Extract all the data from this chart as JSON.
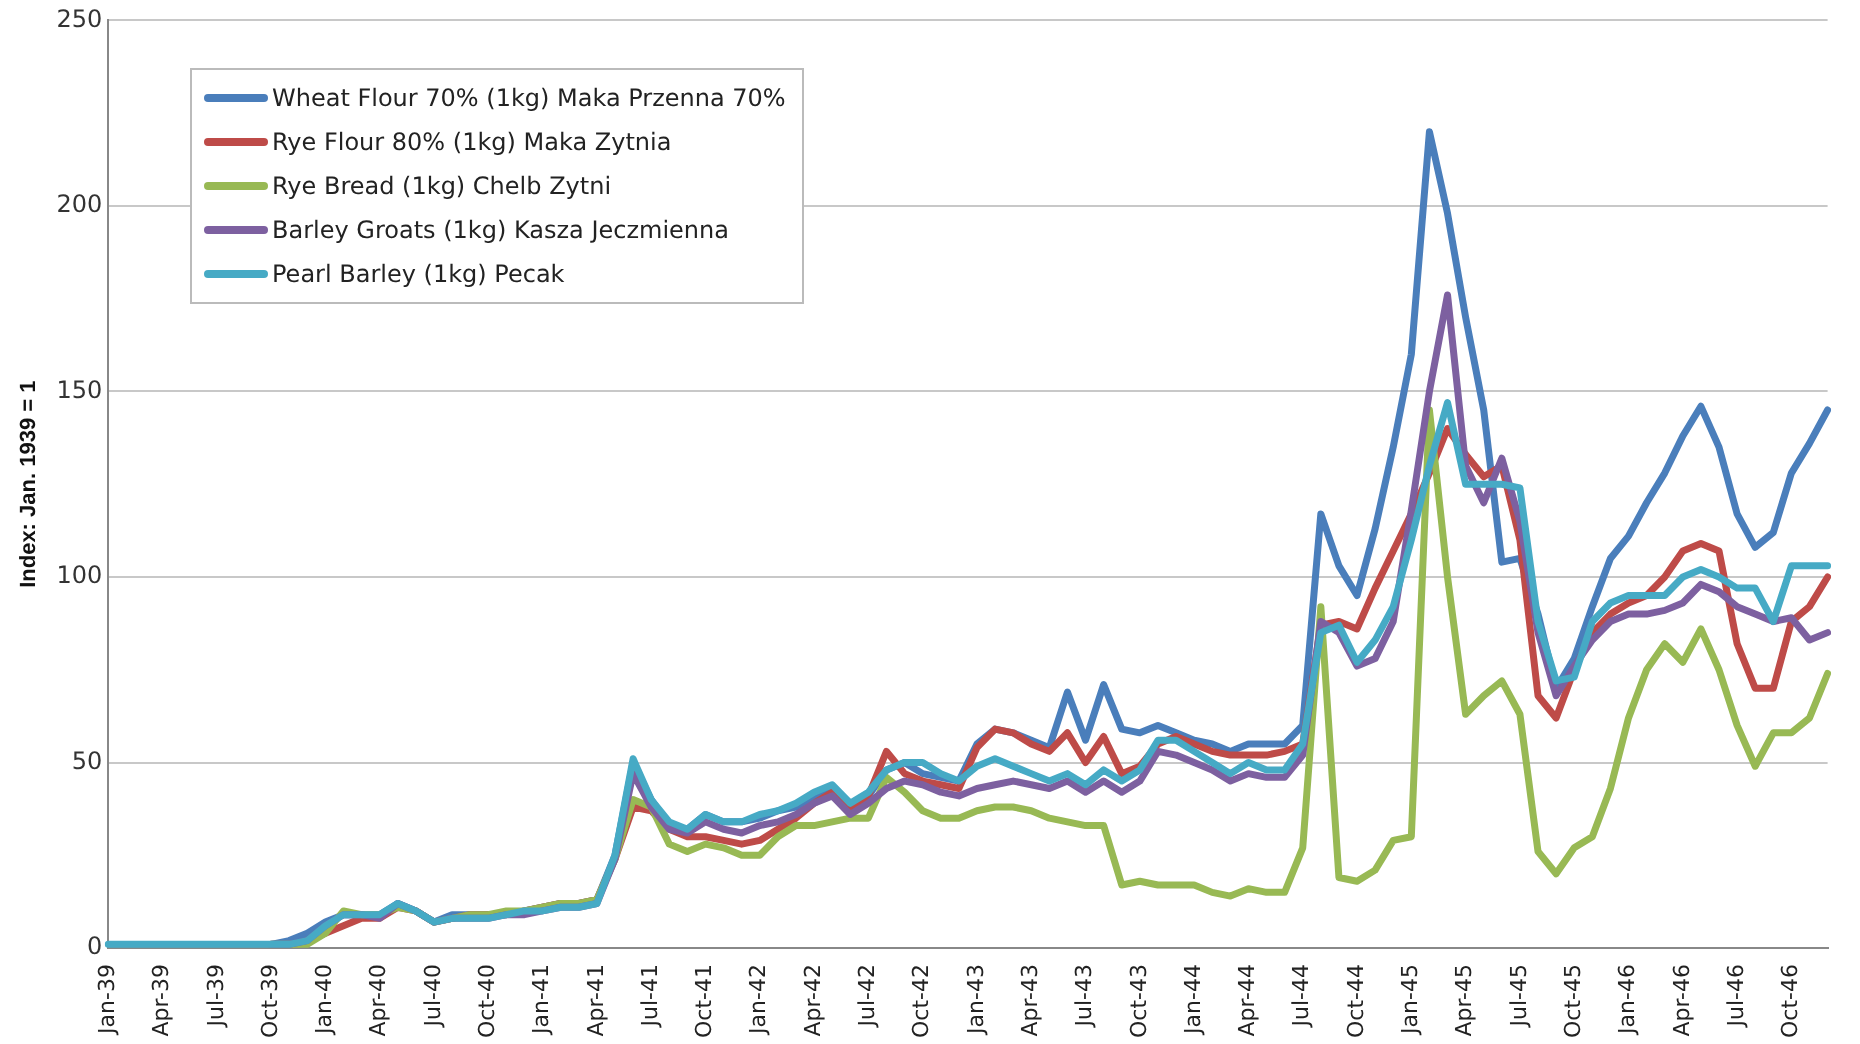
{
  "chart_data": {
    "type": "line",
    "ylabel": "Index: Jan. 1939 = 1",
    "categories": [
      "Jan-39",
      null,
      null,
      "Apr-39",
      null,
      null,
      "Jul-39",
      null,
      null,
      "Oct-39",
      null,
      null,
      "Jan-40",
      null,
      null,
      "Apr-40",
      null,
      null,
      "Jul-40",
      null,
      null,
      "Oct-40",
      null,
      null,
      "Jan-41",
      null,
      null,
      "Apr-41",
      null,
      null,
      "Jul-41",
      null,
      null,
      "Oct-41",
      null,
      null,
      "Jan-42",
      null,
      null,
      "Apr-42",
      null,
      null,
      "Jul-42",
      null,
      null,
      "Oct-42",
      null,
      null,
      "Jan-43",
      null,
      null,
      "Apr-43",
      null,
      null,
      "Jul-43",
      null,
      null,
      "Oct-43",
      null,
      null,
      "Jan-44",
      null,
      null,
      "Apr-44",
      null,
      null,
      "Jul-44",
      null,
      null,
      "Oct-44",
      null,
      null,
      "Jan-45",
      null,
      null,
      "Apr-45",
      null,
      null,
      "Jul-45",
      null,
      null,
      "Oct-45",
      null,
      null,
      "Jan-46",
      null,
      null,
      "Apr-46",
      null,
      null,
      "Jul-46",
      null,
      null,
      "Oct-46",
      null,
      null
    ],
    "series": [
      {
        "name": "Wheat Flour 70% (1kg) Maka Przenna 70%",
        "color": "#4a7ebb",
        "values": [
          null,
          null,
          null,
          null,
          null,
          null,
          null,
          null,
          null,
          1,
          2,
          4,
          7,
          9,
          9,
          9,
          12,
          10,
          7,
          9,
          9,
          9,
          9,
          10,
          11,
          12,
          12,
          13,
          25,
          50,
          40,
          33,
          32,
          36,
          34,
          34,
          35,
          37,
          38,
          41,
          43,
          38,
          41,
          48,
          50,
          47,
          46,
          45,
          55,
          59,
          58,
          56,
          54,
          69,
          56,
          71,
          59,
          58,
          60,
          58,
          56,
          55,
          53,
          55,
          55,
          55,
          60,
          117,
          103,
          95,
          113,
          135,
          160,
          220,
          198,
          170,
          145,
          104,
          105,
          90,
          70,
          78,
          92,
          105,
          111,
          120,
          128,
          138,
          146,
          135,
          117,
          108,
          112,
          128,
          136,
          145
        ]
      },
      {
        "name": "Rye Flour 80% (1kg) Maka Zytnia",
        "color": "#be4b48",
        "values": [
          null,
          null,
          null,
          null,
          null,
          null,
          null,
          null,
          null,
          null,
          null,
          2,
          4,
          6,
          8,
          8,
          11,
          10,
          7,
          8,
          9,
          9,
          9,
          10,
          11,
          12,
          12,
          13,
          24,
          38,
          37,
          32,
          30,
          30,
          29,
          28,
          29,
          32,
          35,
          39,
          42,
          37,
          41,
          53,
          47,
          45,
          44,
          43,
          54,
          59,
          58,
          55,
          53,
          58,
          50,
          57,
          47,
          49,
          55,
          57,
          55,
          53,
          52,
          52,
          52,
          53,
          55,
          87,
          88,
          86,
          97,
          107,
          117,
          128,
          140,
          133,
          127,
          130,
          110,
          68,
          62,
          75,
          85,
          90,
          93,
          95,
          100,
          107,
          109,
          107,
          82,
          70,
          70,
          88,
          92,
          100
        ]
      },
      {
        "name": "Rye Bread (1kg) Chelb Zytni",
        "color": "#98b954",
        "values": [
          null,
          null,
          null,
          null,
          null,
          null,
          null,
          null,
          null,
          1,
          1,
          1,
          4,
          10,
          9,
          9,
          11,
          10,
          7,
          8,
          9,
          9,
          10,
          10,
          11,
          12,
          12,
          13,
          24,
          40,
          38,
          28,
          26,
          28,
          27,
          25,
          25,
          30,
          33,
          33,
          34,
          35,
          35,
          46,
          42,
          37,
          35,
          35,
          37,
          38,
          38,
          37,
          35,
          34,
          33,
          33,
          17,
          18,
          17,
          17,
          17,
          15,
          14,
          16,
          15,
          15,
          27,
          92,
          19,
          18,
          21,
          29,
          30,
          145,
          100,
          63,
          68,
          72,
          63,
          26,
          20,
          27,
          30,
          43,
          62,
          75,
          82,
          77,
          86,
          75,
          60,
          49,
          58,
          58,
          62,
          74
        ]
      },
      {
        "name": "Barley Groats (1kg) Kasza Jeczmienna",
        "color": "#7d60a0",
        "values": [
          null,
          null,
          null,
          null,
          null,
          null,
          null,
          null,
          null,
          1,
          1,
          2,
          6,
          9,
          9,
          8,
          12,
          10,
          7,
          8,
          8,
          8,
          9,
          9,
          10,
          11,
          11,
          12,
          24,
          47,
          38,
          32,
          31,
          34,
          32,
          31,
          33,
          34,
          36,
          39,
          41,
          36,
          39,
          43,
          45,
          44,
          42,
          41,
          43,
          44,
          45,
          44,
          43,
          45,
          42,
          45,
          42,
          45,
          53,
          52,
          50,
          48,
          45,
          47,
          46,
          46,
          52,
          88,
          85,
          76,
          78,
          88,
          118,
          150,
          176,
          130,
          120,
          132,
          115,
          85,
          68,
          76,
          83,
          88,
          90,
          90,
          91,
          93,
          98,
          96,
          92,
          90,
          88,
          89,
          83,
          85
        ]
      },
      {
        "name": "Pearl Barley (1kg) Pecak",
        "color": "#46aac5",
        "values": [
          1,
          1,
          1,
          1,
          1,
          1,
          1,
          1,
          1,
          1,
          1,
          2,
          6,
          9,
          9,
          9,
          12,
          10,
          7,
          8,
          8,
          8,
          9,
          10,
          10,
          11,
          11,
          12,
          25,
          51,
          40,
          34,
          32,
          36,
          34,
          34,
          36,
          37,
          39,
          42,
          44,
          39,
          42,
          48,
          50,
          50,
          47,
          45,
          49,
          51,
          49,
          47,
          45,
          47,
          44,
          48,
          45,
          48,
          56,
          56,
          53,
          50,
          47,
          50,
          48,
          48,
          55,
          85,
          87,
          77,
          83,
          92,
          110,
          130,
          147,
          125,
          125,
          125,
          124,
          88,
          72,
          73,
          88,
          93,
          95,
          95,
          95,
          100,
          102,
          100,
          97,
          97,
          88,
          103,
          103,
          103
        ]
      }
    ],
    "ylim": [
      0,
      250
    ],
    "yticks": [
      0,
      50,
      100,
      150,
      200,
      250
    ],
    "grid": "y",
    "legend": "top left",
    "marker": "none",
    "line_style": "solid"
  }
}
